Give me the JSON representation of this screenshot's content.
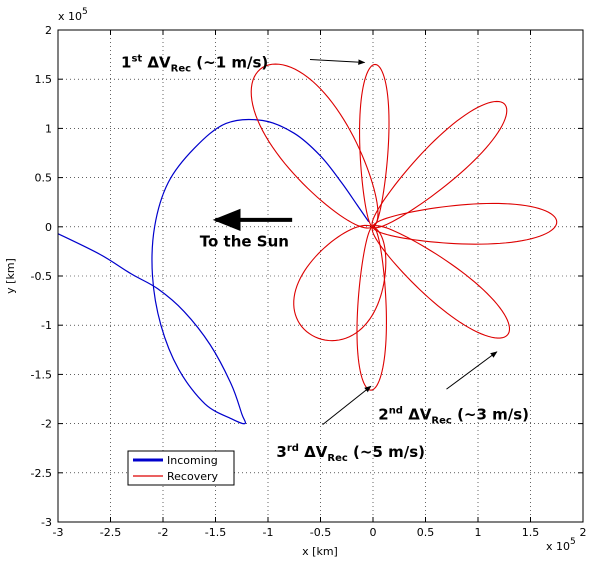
{
  "chart_data": {
    "type": "line",
    "title": "",
    "xlabel": "x [km]",
    "ylabel": "y [km]",
    "xlim": [
      -3,
      2
    ],
    "ylim": [
      -3,
      2
    ],
    "axis_multiplier": "x 10",
    "axis_multiplier_exp": "5",
    "x_ticks": [
      "-3",
      "-2.5",
      "-2",
      "-1.5",
      "-1",
      "-0.5",
      "0",
      "0.5",
      "1",
      "1.5",
      "2"
    ],
    "y_ticks": [
      "2",
      "1.5",
      "1",
      "0.5",
      "0",
      "-0.5",
      "-1",
      "-1.5",
      "-2",
      "-2.5",
      "-3"
    ],
    "grid": true,
    "legend_position": "bottom-left",
    "series": [
      {
        "name": "Incoming",
        "color": "#0000cc",
        "points": [
          [
            -3.0,
            -0.07
          ],
          [
            -2.6,
            -0.28
          ],
          [
            -2.3,
            -0.48
          ],
          [
            -2.05,
            -0.63
          ],
          [
            -1.8,
            -0.86
          ],
          [
            -1.55,
            -1.2
          ],
          [
            -1.35,
            -1.6
          ],
          [
            -1.25,
            -1.9
          ],
          [
            -1.22,
            -2.0
          ],
          [
            -1.35,
            -1.95
          ],
          [
            -1.6,
            -1.8
          ],
          [
            -1.85,
            -1.45
          ],
          [
            -2.02,
            -1.0
          ],
          [
            -2.1,
            -0.5
          ],
          [
            -2.08,
            0.0
          ],
          [
            -1.95,
            0.45
          ],
          [
            -1.7,
            0.8
          ],
          [
            -1.4,
            1.05
          ],
          [
            -1.05,
            1.08
          ],
          [
            -0.75,
            0.95
          ],
          [
            -0.5,
            0.72
          ],
          [
            -0.3,
            0.45
          ],
          [
            -0.15,
            0.22
          ],
          [
            -0.04,
            0.05
          ]
        ]
      },
      {
        "name": "Recovery",
        "color": "#dd0000",
        "lobes": [
          {
            "tip": [
              -1.05,
              1.62
            ],
            "width": 0.88
          },
          {
            "tip": [
              -0.55,
              -1.12
            ],
            "width": 0.95
          },
          {
            "tip": [
              0.02,
              1.65
            ],
            "width": 0.34
          },
          {
            "tip": [
              1.25,
              1.25
            ],
            "width": 0.5
          },
          {
            "tip": [
              1.75,
              0.05
            ],
            "width": 0.5
          },
          {
            "tip": [
              1.28,
              -1.1
            ],
            "width": 0.5
          },
          {
            "tip": [
              -0.02,
              -1.66
            ],
            "width": 0.34
          }
        ]
      }
    ],
    "annotations": [
      {
        "id": "dv1",
        "ordinal": "1",
        "sup": "st",
        "label": "ΔV",
        "sub": "Rec",
        "suffix": " (~1 m/s)",
        "x": -2.4,
        "y": 1.62,
        "arrow_from": [
          -0.6,
          1.7
        ],
        "arrow_to": [
          -0.08,
          1.67
        ]
      },
      {
        "id": "sun",
        "label": "To the Sun",
        "x": -1.65,
        "y": -0.2,
        "arrow_from": [
          -0.77,
          0.07
        ],
        "arrow_to": [
          -1.5,
          0.07
        ]
      },
      {
        "id": "dv2",
        "ordinal": "2",
        "sup": "nd",
        "label": "ΔV",
        "sub": "Rec",
        "suffix": " (~3 m/s)",
        "x": 0.05,
        "y": -1.96,
        "arrow_from": [
          0.7,
          -1.65
        ],
        "arrow_to": [
          1.18,
          -1.27
        ]
      },
      {
        "id": "dv3",
        "ordinal": "3",
        "sup": "rd",
        "label": "ΔV",
        "sub": "Rec",
        "suffix": " (~5 m/s)",
        "x": -0.92,
        "y": -2.34,
        "arrow_from": [
          -0.48,
          -2.01
        ],
        "arrow_to": [
          -0.02,
          -1.62
        ]
      }
    ]
  }
}
